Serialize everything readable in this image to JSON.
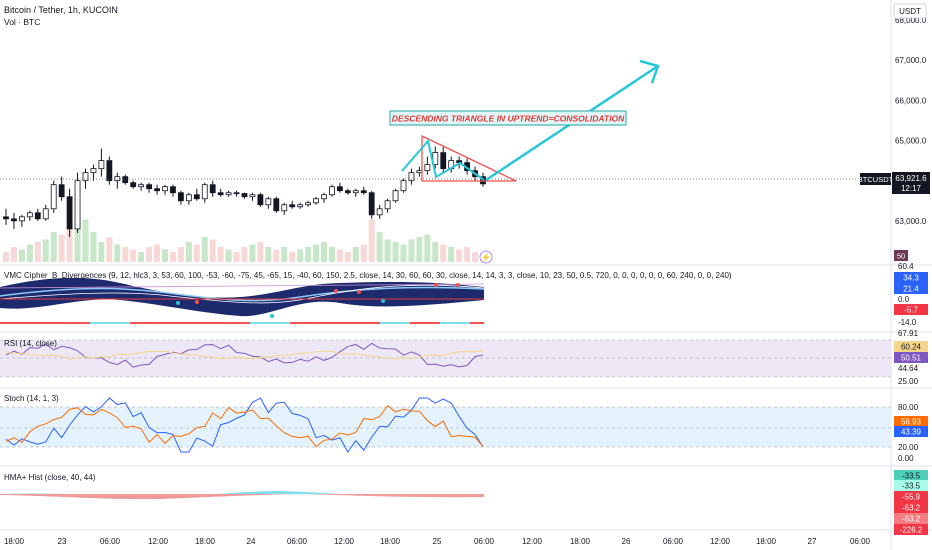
{
  "header": {
    "symbol_title": "Bitcoin / Tether, 1h, KUCOIN",
    "volume_label": "Vol · BTC",
    "currency": "USDT"
  },
  "price_pane": {
    "y_ticks": [
      "68,000.0",
      "67,000.0",
      "66,000.0",
      "65,000.0",
      "63,000.0"
    ],
    "last_price_ticker": "BTCUSDT",
    "last_price": "63,921.6",
    "countdown": "12:17",
    "annotation": "DESCENDING TRIANGLE IN UPTREND=CONSOLIDATION",
    "volume_badge": "50",
    "colors": {
      "up": "#26a69a",
      "down": "#ef5350",
      "arrow": "#26c6da",
      "triangle": "#ef5350",
      "annotation_text": "#e53935"
    }
  },
  "vmc_pane": {
    "title": "VMC Cipher_B_Divergences (9, 12, hlc3, 3, 53, 60, 100, -53, -60, -75, 45, -65, 15, -40, 60, 150, 2.5, close, 14, 30, 60, 60, 30, close, 14, 14, 3, 3, close, 10, 23, 50, 0.5, 720, 0, 0, 0, 0, 0, 0, 60, 240, 0, 0, 240)",
    "scale": [
      "60.4",
      "0.0",
      "-14.0"
    ],
    "badges": [
      {
        "text": "34.3",
        "color": "#2962ff"
      },
      {
        "text": "21.4",
        "color": "#2962ff"
      },
      {
        "text": "-5.7",
        "color": "#f23645"
      }
    ]
  },
  "rsi_pane": {
    "title": "RSI (14, close)",
    "scale": [
      "67.91",
      "44.64",
      "25.00"
    ],
    "badges": [
      {
        "text": "60.24",
        "color": "#f5d58a",
        "fg": "#131722"
      },
      {
        "text": "50.51",
        "color": "#7e57c2",
        "fg": "#ffffff"
      }
    ]
  },
  "stoch_pane": {
    "title": "Stoch (14, 1, 3)",
    "scale": [
      "80.00",
      "20.00",
      "0.00"
    ],
    "badges": [
      {
        "text": "56.93",
        "color": "#ff6d00"
      },
      {
        "text": "43.39",
        "color": "#2962ff"
      }
    ]
  },
  "hma_pane": {
    "title": "HMA+ Hist (close, 40, 44)",
    "badges": [
      {
        "text": "-33.5",
        "color": "#4dd0b5",
        "fg": "#131722"
      },
      {
        "text": "-33.5",
        "color": "#a7ffeb",
        "fg": "#131722"
      },
      {
        "text": "-55.9",
        "color": "#f23645"
      },
      {
        "text": "-63.2",
        "color": "#f23645"
      },
      {
        "text": "-63.2",
        "color": "#f77c80"
      },
      {
        "text": "-226.2",
        "color": "#f23645"
      }
    ]
  },
  "time_axis": [
    "18:00",
    "23",
    "06:00",
    "12:00",
    "18:00",
    "24",
    "06:00",
    "12:00",
    "18:00",
    "25",
    "06:00",
    "12:00",
    "18:00",
    "26",
    "06:00",
    "12:00",
    "18:00",
    "27",
    "06:00"
  ],
  "chart_data": {
    "type": "candlestick",
    "title": "Bitcoin / Tether, 1h, KUCOIN",
    "ylabel": "USDT",
    "ylim": [
      61900,
      68500
    ],
    "last_price": 63921.6,
    "candles": [
      [
        63100,
        63300,
        62900,
        63050
      ],
      [
        63050,
        63200,
        62800,
        63000
      ],
      [
        63000,
        63150,
        62850,
        63100
      ],
      [
        63100,
        63250,
        63000,
        63200
      ],
      [
        63200,
        63300,
        63000,
        63050
      ],
      [
        63050,
        63400,
        63000,
        63300
      ],
      [
        63300,
        64000,
        63200,
        63900
      ],
      [
        63900,
        64100,
        63500,
        63600
      ],
      [
        63600,
        63800,
        62600,
        62800
      ],
      [
        62800,
        64200,
        62700,
        64000
      ],
      [
        64000,
        64300,
        63800,
        64200
      ],
      [
        64200,
        64400,
        64000,
        64300
      ],
      [
        64300,
        64800,
        64100,
        64500
      ],
      [
        64500,
        64600,
        63900,
        64000
      ],
      [
        64000,
        64200,
        63800,
        64100
      ],
      [
        64100,
        64150,
        63900,
        63950
      ],
      [
        63950,
        64000,
        63800,
        63850
      ],
      [
        63850,
        63950,
        63750,
        63900
      ],
      [
        63900,
        63950,
        63700,
        63800
      ],
      [
        63800,
        63900,
        63650,
        63750
      ],
      [
        63750,
        63900,
        63650,
        63850
      ],
      [
        63850,
        63900,
        63600,
        63700
      ],
      [
        63700,
        63750,
        63400,
        63500
      ],
      [
        63500,
        63700,
        63400,
        63650
      ],
      [
        63650,
        63800,
        63500,
        63550
      ],
      [
        63550,
        63950,
        63450,
        63900
      ],
      [
        63900,
        64000,
        63600,
        63700
      ],
      [
        63700,
        63800,
        63600,
        63650
      ],
      [
        63650,
        63750,
        63600,
        63700
      ],
      [
        63700,
        63750,
        63600,
        63680
      ],
      [
        63680,
        63700,
        63550,
        63600
      ],
      [
        63600,
        63700,
        63500,
        63650
      ],
      [
        63650,
        63700,
        63350,
        63400
      ],
      [
        63400,
        63600,
        63300,
        63550
      ],
      [
        63550,
        63600,
        63200,
        63250
      ],
      [
        63250,
        63450,
        63150,
        63400
      ],
      [
        63400,
        63500,
        63300,
        63350
      ],
      [
        63350,
        63450,
        63300,
        63400
      ],
      [
        63400,
        63500,
        63350,
        63450
      ],
      [
        63450,
        63600,
        63400,
        63550
      ],
      [
        63550,
        63700,
        63450,
        63650
      ],
      [
        63650,
        63900,
        63600,
        63850
      ],
      [
        63850,
        63950,
        63700,
        63750
      ],
      [
        63750,
        63800,
        63650,
        63700
      ],
      [
        63700,
        63800,
        63600,
        63750
      ],
      [
        63750,
        63850,
        63650,
        63700
      ],
      [
        63700,
        63750,
        63050,
        63150
      ],
      [
        63150,
        63400,
        63050,
        63300
      ],
      [
        63300,
        63550,
        63200,
        63500
      ],
      [
        63500,
        63800,
        63450,
        63750
      ],
      [
        63750,
        64050,
        63700,
        64000
      ],
      [
        64000,
        64300,
        63900,
        64200
      ],
      [
        64200,
        64350,
        64100,
        64250
      ],
      [
        64250,
        64600,
        64150,
        64400
      ],
      [
        64400,
        64850,
        64300,
        64700
      ],
      [
        64700,
        64850,
        64200,
        64300
      ],
      [
        64300,
        64600,
        64200,
        64500
      ],
      [
        64500,
        64600,
        64300,
        64450
      ],
      [
        64450,
        64550,
        64150,
        64250
      ],
      [
        64250,
        64350,
        64000,
        64100
      ],
      [
        64100,
        64200,
        63850,
        63920
      ]
    ],
    "volume": [
      20,
      30,
      25,
      35,
      40,
      45,
      60,
      55,
      70,
      90,
      85,
      60,
      40,
      50,
      35,
      30,
      25,
      20,
      30,
      35,
      25,
      20,
      30,
      40,
      35,
      50,
      45,
      30,
      25,
      20,
      30,
      35,
      40,
      30,
      25,
      30,
      20,
      25,
      30,
      35,
      40,
      30,
      25,
      20,
      30,
      35,
      85,
      60,
      45,
      40,
      35,
      45,
      50,
      55,
      40,
      35,
      30,
      25,
      30,
      20,
      15
    ],
    "annotations": [
      {
        "type": "text",
        "text": "DESCENDING TRIANGLE IN UPTREND=CONSOLIDATION"
      },
      {
        "type": "triangle",
        "label": "descending triangle"
      },
      {
        "type": "arrow",
        "label": "projected breakout up"
      }
    ]
  }
}
